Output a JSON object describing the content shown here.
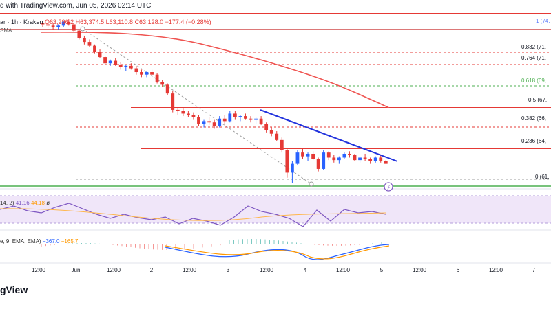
{
  "header": {
    "credit": "d with TradingView.com, Jun 05, 2026 02:14 UTC",
    "ohlc_pre": "ar · 1h · Kraken",
    "open": "O63,296.2",
    "high": "H63,374.5",
    "low": "L63,110.8",
    "close": "C63,128.0",
    "change": "−177.4 (−0.28%)",
    "sma_label": "SMA"
  },
  "rsi": {
    "label": "14, 2)",
    "value1": "41.16",
    "value2": "44.18",
    "extra": "ø"
  },
  "macd": {
    "label": "e, 9, EMA, EMA)",
    "value": "−367.0",
    "value2": "−165.7"
  },
  "logo": "gView",
  "colors": {
    "up": "#2962ff",
    "down": "#e53935",
    "sma": "#ef5350",
    "trend": "#2233dd",
    "support_green": "#4caf50",
    "rsi_line": "#7e57c2",
    "rsi_band": "#e9dcf7",
    "macd_line": "#2962ff",
    "signal_line": "#ff9800",
    "fib_green": "#4caf50"
  },
  "chart_data": {
    "type": "candlestick",
    "fib_levels": [
      {
        "ratio": "1",
        "label": "1 (74,"
      },
      {
        "ratio": "0.832",
        "label": "0.832 (71,"
      },
      {
        "ratio": "0.764",
        "label": "0.764 (71,"
      },
      {
        "ratio": "0.618",
        "label": "0.618 (69,"
      },
      {
        "ratio": "0.5",
        "label": "0.5 (67,"
      },
      {
        "ratio": "0.382",
        "label": "0.382 (66,"
      },
      {
        "ratio": "0.236",
        "label": "0.236 (64,"
      },
      {
        "ratio": "0",
        "label": "0 (61,"
      }
    ],
    "x_ticks": [
      "12:00",
      "Jun",
      "12:00",
      "2",
      "12:00",
      "3",
      "12:00",
      "4",
      "12:00",
      "5",
      "12:00",
      "6",
      "12:00",
      "7"
    ],
    "candles": [
      [
        74.3,
        74.5,
        74.0,
        74.2
      ],
      [
        74.2,
        74.4,
        73.9,
        74.1
      ],
      [
        74.1,
        74.3,
        73.8,
        74.0
      ],
      [
        74.0,
        74.2,
        73.8,
        74.1
      ],
      [
        74.1,
        74.5,
        74.0,
        74.4
      ],
      [
        74.4,
        74.6,
        74.1,
        74.2
      ],
      [
        74.2,
        74.3,
        73.6,
        73.7
      ],
      [
        73.7,
        73.8,
        73.0,
        73.1
      ],
      [
        73.1,
        73.3,
        72.6,
        72.8
      ],
      [
        72.8,
        73.0,
        72.4,
        72.5
      ],
      [
        72.5,
        72.6,
        71.9,
        72.0
      ],
      [
        72.0,
        72.2,
        71.5,
        71.6
      ],
      [
        71.6,
        71.7,
        71.0,
        71.1
      ],
      [
        71.1,
        71.4,
        70.9,
        71.3
      ],
      [
        71.3,
        71.5,
        70.9,
        71.0
      ],
      [
        71.0,
        71.2,
        70.6,
        70.8
      ],
      [
        70.8,
        71.0,
        70.5,
        70.9
      ],
      [
        70.9,
        71.1,
        70.6,
        70.7
      ],
      [
        70.7,
        70.9,
        70.2,
        70.4
      ],
      [
        70.4,
        70.6,
        70.0,
        70.2
      ],
      [
        70.2,
        70.5,
        70.0,
        70.4
      ],
      [
        70.4,
        70.6,
        70.1,
        70.2
      ],
      [
        70.2,
        70.3,
        69.5,
        69.6
      ],
      [
        69.6,
        69.8,
        69.2,
        69.4
      ],
      [
        69.4,
        69.5,
        68.6,
        68.7
      ],
      [
        68.7,
        68.9,
        67.2,
        67.4
      ],
      [
        67.4,
        67.6,
        67.0,
        67.3
      ],
      [
        67.3,
        67.5,
        66.9,
        67.1
      ],
      [
        67.1,
        67.3,
        66.8,
        67.0
      ],
      [
        67.0,
        67.2,
        66.6,
        66.8
      ],
      [
        66.8,
        67.0,
        66.1,
        66.3
      ],
      [
        66.3,
        66.6,
        66.0,
        66.5
      ],
      [
        66.5,
        66.8,
        66.2,
        66.4
      ],
      [
        66.4,
        66.6,
        65.9,
        66.1
      ],
      [
        66.1,
        66.9,
        66.0,
        66.7
      ],
      [
        66.7,
        67.0,
        66.3,
        66.5
      ],
      [
        66.5,
        67.3,
        66.4,
        67.1
      ],
      [
        67.1,
        67.3,
        66.6,
        66.8
      ],
      [
        66.8,
        67.0,
        66.5,
        66.9
      ],
      [
        66.9,
        67.1,
        66.6,
        66.7
      ],
      [
        66.7,
        66.9,
        66.4,
        66.6
      ],
      [
        66.6,
        66.8,
        66.3,
        66.7
      ],
      [
        66.7,
        66.9,
        66.2,
        66.3
      ],
      [
        66.3,
        66.4,
        65.6,
        65.8
      ],
      [
        65.8,
        66.0,
        65.3,
        65.5
      ],
      [
        65.5,
        65.7,
        64.9,
        65.0
      ],
      [
        65.0,
        65.2,
        64.0,
        64.2
      ],
      [
        64.2,
        64.3,
        62.0,
        62.4
      ],
      [
        62.4,
        63.3,
        61.6,
        63.1
      ],
      [
        63.1,
        64.2,
        63.0,
        64.0
      ],
      [
        64.0,
        64.3,
        63.5,
        63.7
      ],
      [
        63.7,
        64.0,
        63.3,
        63.9
      ],
      [
        63.9,
        64.1,
        63.4,
        63.5
      ],
      [
        63.5,
        63.6,
        62.5,
        62.7
      ],
      [
        62.7,
        64.2,
        62.6,
        64.0
      ],
      [
        64.0,
        64.1,
        63.4,
        63.6
      ],
      [
        63.6,
        63.8,
        63.2,
        63.4
      ],
      [
        63.4,
        63.7,
        63.1,
        63.6
      ],
      [
        63.6,
        64.0,
        63.5,
        63.9
      ],
      [
        63.9,
        64.1,
        63.6,
        63.8
      ],
      [
        63.8,
        63.9,
        63.3,
        63.4
      ],
      [
        63.4,
        63.7,
        63.2,
        63.6
      ],
      [
        63.6,
        63.9,
        63.3,
        63.5
      ],
      [
        63.5,
        63.6,
        63.1,
        63.3
      ],
      [
        63.3,
        63.7,
        63.2,
        63.6
      ],
      [
        63.6,
        63.8,
        63.2,
        63.3
      ],
      [
        63.3,
        63.4,
        63.1,
        63.1
      ]
    ]
  }
}
